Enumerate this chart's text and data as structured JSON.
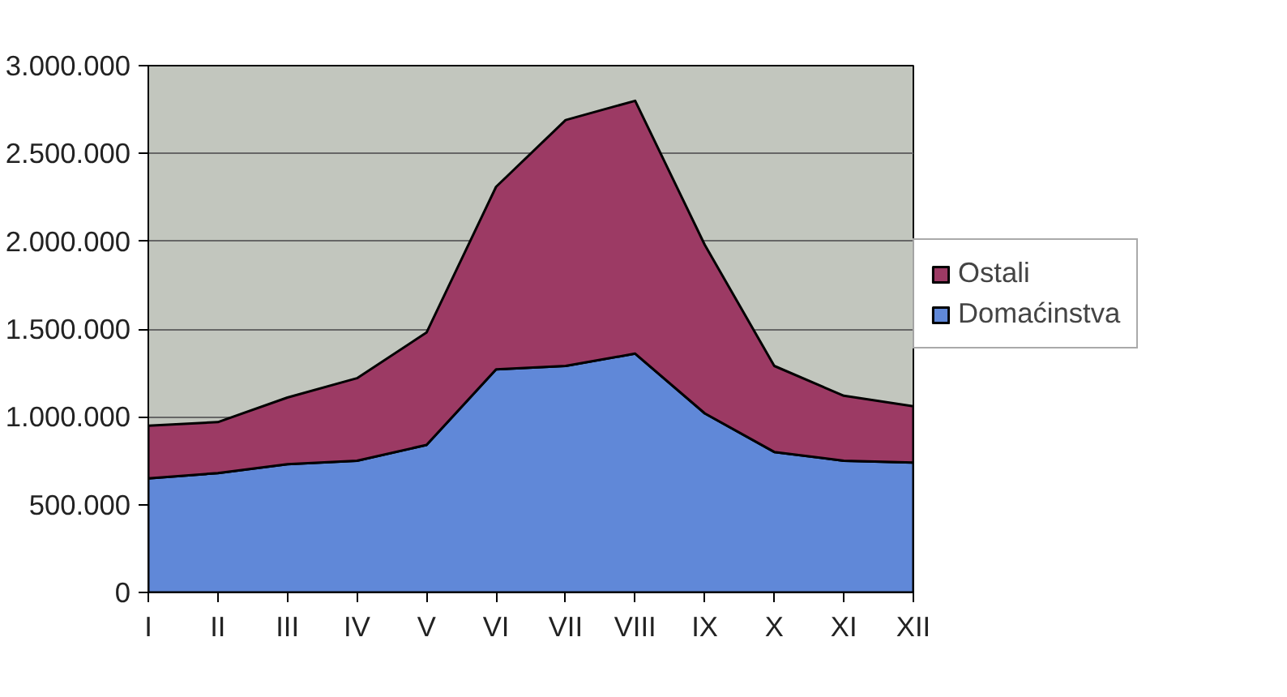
{
  "chart_data": {
    "type": "area",
    "stacked": true,
    "categories": [
      "I",
      "II",
      "III",
      "IV",
      "V",
      "VI",
      "VII",
      "VIII",
      "IX",
      "X",
      "XI",
      "XII"
    ],
    "series": [
      {
        "name": "Domaćinstva",
        "color": "#6088d8",
        "values": [
          650000,
          680000,
          730000,
          750000,
          840000,
          1270000,
          1290000,
          1360000,
          1020000,
          800000,
          750000,
          740000
        ]
      },
      {
        "name": "Ostali",
        "color": "#9c3a64",
        "values": [
          300000,
          290000,
          380000,
          470000,
          640000,
          1040000,
          1400000,
          1440000,
          960000,
          490000,
          370000,
          320000
        ]
      }
    ],
    "ylim": [
      0,
      3000000
    ],
    "yticks": [
      {
        "value": 0,
        "label": "0"
      },
      {
        "value": 500000,
        "label": "500.000"
      },
      {
        "value": 1000000,
        "label": "1.000.000"
      },
      {
        "value": 1500000,
        "label": "1.500.000"
      },
      {
        "value": 2000000,
        "label": "2.000.000"
      },
      {
        "value": 2500000,
        "label": "2.500.000"
      },
      {
        "value": 3000000,
        "label": "3.000.000"
      }
    ],
    "grid": "y",
    "legend": "right"
  }
}
